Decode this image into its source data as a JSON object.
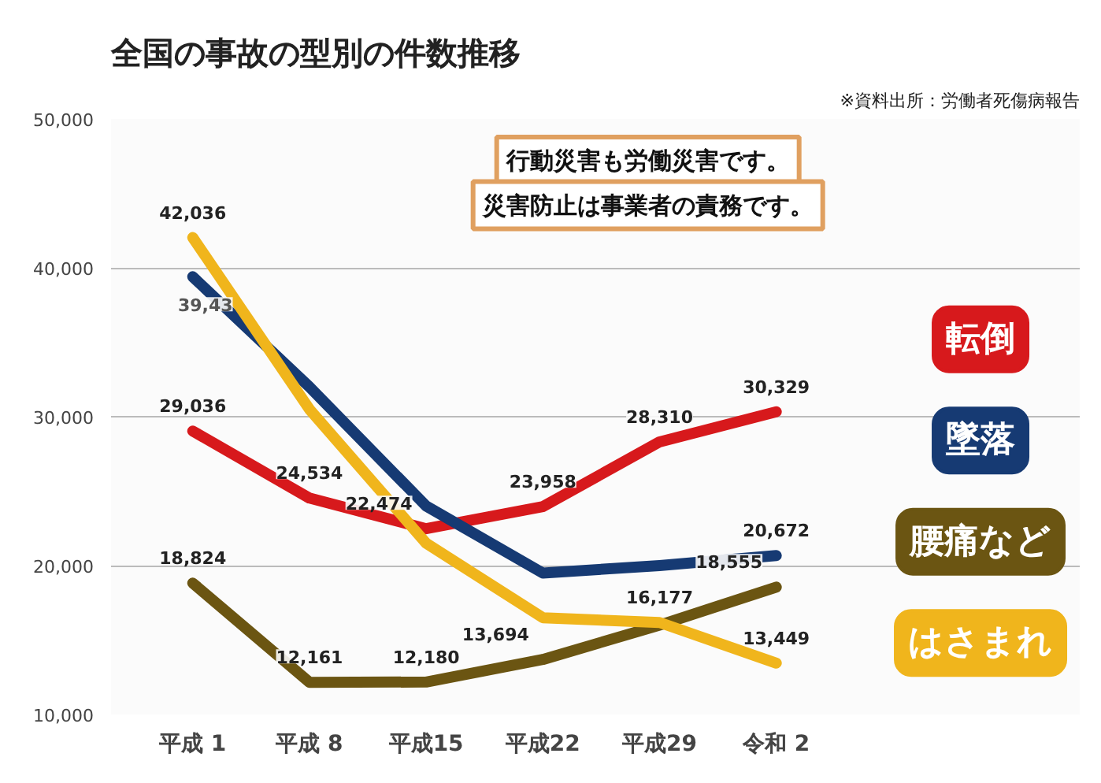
{
  "chart_data": {
    "type": "line",
    "title": "全国の事故の型別の件数推移",
    "categories": [
      "平成 1",
      "平成 8",
      "平成15",
      "平成22",
      "平成29",
      "令和 2"
    ],
    "series": [
      {
        "name": "転倒",
        "color": "#d7191c",
        "values": [
          29036,
          24534,
          22474,
          23958,
          28310,
          30329
        ],
        "value_labels": [
          "29,036",
          "24,534",
          "22,474",
          "23,958",
          "28,310",
          "30,329"
        ]
      },
      {
        "name": "墜落",
        "color": "#163a73",
        "values": [
          39400,
          32000,
          24000,
          19500,
          20000,
          20672
        ],
        "value_labels": [
          null,
          null,
          null,
          null,
          null,
          "20,672"
        ]
      },
      {
        "name": "腰痛など",
        "color": "#6b5512",
        "values": [
          18824,
          12161,
          12180,
          13694,
          16000,
          18555
        ],
        "value_labels": [
          "18,824",
          "12,161",
          "12,180",
          "13,694",
          null,
          "18,555"
        ]
      },
      {
        "name": "はさまれ",
        "color": "#f0b51c",
        "values": [
          42036,
          30500,
          21500,
          16500,
          16177,
          13449
        ],
        "value_labels": [
          "42,036",
          null,
          null,
          null,
          "16,177",
          "13,449"
        ]
      }
    ],
    "ylim": [
      10000,
      50000
    ],
    "yticks": [
      {
        "value": 10000,
        "label": "10,000"
      },
      {
        "value": 20000,
        "label": "20,000"
      },
      {
        "value": 30000,
        "label": "30,000"
      },
      {
        "value": 40000,
        "label": "40,000"
      },
      {
        "value": 50000,
        "label": "50,000"
      }
    ],
    "grid": "y",
    "legend": "right",
    "marker": "none",
    "line_style": "solid",
    "annotations": [
      "※資料出所：労働者死傷病報告",
      "行動災害も労働災害です。",
      "災害防止は事業者の責務です。",
      {
        "text": "39,43",
        "x": "平成 1",
        "y": 39400
      }
    ]
  }
}
